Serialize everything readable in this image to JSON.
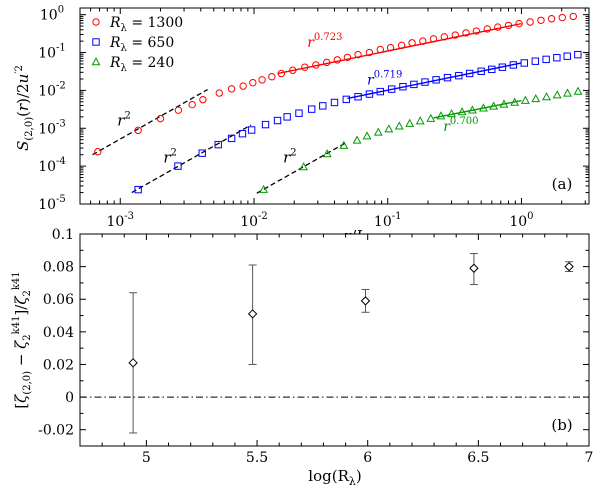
{
  "chart_data": [
    {
      "type": "scatter",
      "panel_label": "(a)",
      "ylabel": "S(2,0)(r)/2u'2",
      "xlabel": "r/L",
      "xscale": "log",
      "yscale": "log",
      "xlim": [
        0.0005,
        3.2
      ],
      "ylim": [
        1e-05,
        1.5
      ],
      "xticks": [
        {
          "v": 0.001,
          "base": "10",
          "exp": "-3"
        },
        {
          "v": 0.01,
          "base": "10",
          "exp": "-2"
        },
        {
          "v": 0.1,
          "base": "10",
          "exp": "-1"
        },
        {
          "v": 1,
          "base": "10",
          "exp": "0"
        }
      ],
      "yticks": [
        {
          "v": 1e-05,
          "base": "10",
          "exp": "-5"
        },
        {
          "v": 0.0001,
          "base": "10",
          "exp": "-4"
        },
        {
          "v": 0.001,
          "base": "10",
          "exp": "-3"
        },
        {
          "v": 0.01,
          "base": "10",
          "exp": "-2"
        },
        {
          "v": 0.1,
          "base": "10",
          "exp": "-1"
        },
        {
          "v": 1,
          "base": "10",
          "exp": "0"
        }
      ],
      "legend_position": "top-left",
      "series": [
        {
          "name_prefix": "R",
          "name_sub": "λ",
          "name_value": "= 1300",
          "color": "#ff0000",
          "marker": "circle",
          "x": [
            0.00068,
            0.00136,
            0.002,
            0.00272,
            0.00345,
            0.00415,
            0.0055,
            0.0068,
            0.0083,
            0.0098,
            0.0115,
            0.0136,
            0.016,
            0.0195,
            0.024,
            0.029,
            0.035,
            0.042,
            0.05,
            0.06,
            0.073,
            0.088,
            0.105,
            0.127,
            0.152,
            0.183,
            0.22,
            0.265,
            0.32,
            0.385,
            0.46,
            0.555,
            0.665,
            0.8,
            0.96,
            1.16,
            1.4,
            1.68,
            2.02,
            2.44
          ],
          "y": [
            0.00024,
            0.00088,
            0.0018,
            0.003,
            0.0042,
            0.0057,
            0.0085,
            0.011,
            0.013,
            0.016,
            0.019,
            0.023,
            0.028,
            0.034,
            0.041,
            0.047,
            0.055,
            0.064,
            0.075,
            0.088,
            0.1,
            0.12,
            0.135,
            0.155,
            0.18,
            0.2,
            0.23,
            0.26,
            0.29,
            0.33,
            0.37,
            0.42,
            0.47,
            0.52,
            0.58,
            0.64,
            0.71,
            0.78,
            0.84,
            0.9
          ]
        },
        {
          "name_prefix": "R",
          "name_sub": "λ",
          "name_value": "= 650",
          "color": "#0000ff",
          "marker": "square",
          "x": [
            0.00136,
            0.0027,
            0.0041,
            0.0054,
            0.0068,
            0.0082,
            0.0096,
            0.0122,
            0.015,
            0.0177,
            0.0217,
            0.027,
            0.0327,
            0.04,
            0.049,
            0.06,
            0.073,
            0.088,
            0.107,
            0.13,
            0.157,
            0.19,
            0.23,
            0.28,
            0.34,
            0.41,
            0.5,
            0.6,
            0.72,
            0.87,
            1.05,
            1.27,
            1.53,
            1.84,
            2.2,
            2.64
          ],
          "y": [
            2.4e-05,
            0.0001,
            0.00022,
            0.00037,
            0.00054,
            0.00072,
            0.0009,
            0.00125,
            0.0016,
            0.002,
            0.0025,
            0.0032,
            0.0039,
            0.0048,
            0.0058,
            0.0068,
            0.008,
            0.0093,
            0.0108,
            0.0125,
            0.0144,
            0.0166,
            0.019,
            0.0217,
            0.0245,
            0.028,
            0.032,
            0.036,
            0.041,
            0.047,
            0.053,
            0.059,
            0.066,
            0.073,
            0.08,
            0.088
          ]
        },
        {
          "name_prefix": "R",
          "name_sub": "λ",
          "name_value": "= 240",
          "color": "#009900",
          "marker": "triangle",
          "x": [
            0.0118,
            0.0235,
            0.0353,
            0.047,
            0.059,
            0.07,
            0.085,
            0.102,
            0.122,
            0.146,
            0.175,
            0.21,
            0.25,
            0.3,
            0.36,
            0.43,
            0.52,
            0.62,
            0.74,
            0.89,
            1.07,
            1.28,
            1.54,
            1.85,
            2.21,
            2.65
          ],
          "y": [
            2.4e-05,
            9.5e-05,
            0.00021,
            0.00035,
            0.00048,
            0.00062,
            0.00078,
            0.00095,
            0.00113,
            0.00133,
            0.00155,
            0.0018,
            0.0021,
            0.0024,
            0.0027,
            0.003,
            0.0034,
            0.0038,
            0.0043,
            0.0048,
            0.0054,
            0.006,
            0.0067,
            0.0075,
            0.0084,
            0.0094
          ]
        }
      ],
      "fits": [
        {
          "label_base": "r",
          "label_exp": "0.723",
          "color": "#ff0000",
          "x0": 0.015,
          "x1": 1.0,
          "A": 0.58,
          "p": 0.723,
          "label_x": 0.025,
          "label_y": 0.14
        },
        {
          "label_base": "r",
          "label_exp": "0.719",
          "color": "#0000ff",
          "x0": 0.05,
          "x1": 1.0,
          "A": 0.053,
          "p": 0.719,
          "label_x": 0.07,
          "label_y": 0.0145
        },
        {
          "label_base": "r",
          "label_exp": "0.700",
          "color": "#009900",
          "x0": 0.22,
          "x1": 1.0,
          "A": 0.0054,
          "p": 0.7,
          "label_x": 0.26,
          "label_y": 0.00085
        }
      ],
      "r2_lines": [
        {
          "label_base": "r",
          "label_exp": "2",
          "x0": 0.00062,
          "x1": 0.0045,
          "A": 520,
          "label_x": 0.00095,
          "label_y": 0.0012
        },
        {
          "label_base": "r",
          "label_exp": "2",
          "x0": 0.00122,
          "x1": 0.0095,
          "A": 13.5,
          "label_x": 0.0021,
          "label_y": 0.000125
        },
        {
          "label_base": "r",
          "label_exp": "2",
          "x0": 0.0105,
          "x1": 0.048,
          "A": 0.175,
          "label_x": 0.0165,
          "label_y": 0.000125
        }
      ]
    },
    {
      "type": "errorbar",
      "panel_label": "(b)",
      "ylabel": "[ζ(2,0) − ζ2k41]/ζ2k41",
      "xlabel": "log(R",
      "xlabel_sub": "λ",
      "xlabel_close": ")",
      "xlim": [
        4.7,
        7.0
      ],
      "ylim": [
        -0.03,
        0.1
      ],
      "xtick_labels": [
        "5",
        "5.5",
        "6",
        "6.5",
        "7"
      ],
      "xtick_values": [
        5,
        5.5,
        6,
        6.5,
        7
      ],
      "ytick_labels": [
        "-0.02",
        "0",
        "0.02",
        "0.04",
        "0.06",
        "0.08",
        "0.1"
      ],
      "ytick_values": [
        -0.02,
        0,
        0.02,
        0.04,
        0.06,
        0.08,
        0.1
      ],
      "reference_line_y": 0,
      "points": [
        {
          "x": 4.94,
          "y": 0.021,
          "lo": -0.022,
          "hi": 0.064
        },
        {
          "x": 5.48,
          "y": 0.051,
          "lo": 0.02,
          "hi": 0.081
        },
        {
          "x": 5.99,
          "y": 0.059,
          "lo": 0.052,
          "hi": 0.066
        },
        {
          "x": 6.48,
          "y": 0.079,
          "lo": 0.069,
          "hi": 0.088
        },
        {
          "x": 6.91,
          "y": 0.08,
          "lo": 0.077,
          "hi": 0.083
        }
      ]
    }
  ]
}
